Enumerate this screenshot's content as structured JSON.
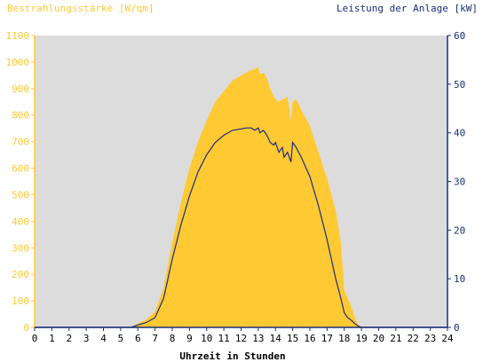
{
  "chart_data": {
    "type": "area",
    "title_left": "Bestrahlungsstärke [W/qm]",
    "title_right": "Leistung der Anlage [kW]",
    "xlabel": "Uhrzeit in Stunden",
    "xlim": [
      0,
      24
    ],
    "x_ticks": [
      "0",
      "1",
      "2",
      "3",
      "4",
      "5",
      "6",
      "7",
      "8",
      "9",
      "10",
      "11",
      "12",
      "13",
      "14",
      "15",
      "16",
      "17",
      "18",
      "19",
      "20",
      "21",
      "22",
      "23",
      "24"
    ],
    "y_left": {
      "min": 0,
      "max": 1100,
      "ticks": [
        "0",
        "100",
        "200",
        "300",
        "400",
        "500",
        "600",
        "700",
        "800",
        "900",
        "1000",
        "1100"
      ]
    },
    "y_right": {
      "min": 0,
      "max": 60,
      "ticks": [
        "0",
        "10",
        "20",
        "30",
        "40",
        "50",
        "60"
      ]
    },
    "grid": false,
    "background": "#dcdcdc",
    "colors": {
      "irradiance": "#ffc933",
      "power": "#1a2e78",
      "left_axis": "#ffc933",
      "right_axis": "#1a2e78"
    },
    "series": [
      {
        "axis": "left",
        "style": "area",
        "x": [
          0,
          5.6,
          6.0,
          6.5,
          7.0,
          7.5,
          8.0,
          8.5,
          9.0,
          9.5,
          10.0,
          10.5,
          11.0,
          11.5,
          12.0,
          12.3,
          12.6,
          12.8,
          13.0,
          13.1,
          13.3,
          13.5,
          13.7,
          13.9,
          14.0,
          14.2,
          14.4,
          14.5,
          14.7,
          14.9,
          15.0,
          15.2,
          15.5,
          16.0,
          16.5,
          17.0,
          17.5,
          17.8,
          18.0,
          18.2,
          18.4,
          18.6,
          18.8,
          19.0,
          19.2,
          24
        ],
        "values": [
          0,
          0,
          15,
          30,
          60,
          150,
          320,
          470,
          600,
          700,
          780,
          850,
          890,
          930,
          950,
          960,
          970,
          975,
          980,
          955,
          960,
          940,
          900,
          870,
          860,
          850,
          860,
          860,
          870,
          780,
          850,
          860,
          820,
          760,
          660,
          560,
          440,
          320,
          140,
          110,
          80,
          40,
          10,
          5,
          0,
          0
        ]
      },
      {
        "axis": "right",
        "style": "line",
        "x": [
          0,
          5.6,
          6.0,
          6.5,
          7.0,
          7.5,
          8.0,
          8.5,
          9.0,
          9.5,
          10.0,
          10.5,
          11.0,
          11.5,
          12.0,
          12.3,
          12.6,
          12.8,
          13.0,
          13.1,
          13.3,
          13.5,
          13.7,
          13.9,
          14.0,
          14.2,
          14.4,
          14.5,
          14.7,
          14.9,
          15.0,
          15.2,
          15.5,
          16.0,
          16.5,
          17.0,
          17.5,
          17.8,
          18.0,
          18.2,
          18.4,
          18.6,
          18.8,
          19.0,
          19.2,
          24
        ],
        "values": [
          0,
          0,
          0.5,
          1,
          2,
          6,
          14,
          21,
          27,
          32,
          35.5,
          38,
          39.5,
          40.5,
          40.8,
          41,
          41,
          40.5,
          41,
          40,
          40.5,
          39.5,
          38,
          37.5,
          38,
          36,
          37,
          35,
          36,
          34,
          38,
          37,
          35,
          31,
          25,
          18,
          10,
          6,
          3,
          2,
          1.5,
          0.8,
          0.3,
          0,
          0,
          0
        ]
      }
    ]
  }
}
